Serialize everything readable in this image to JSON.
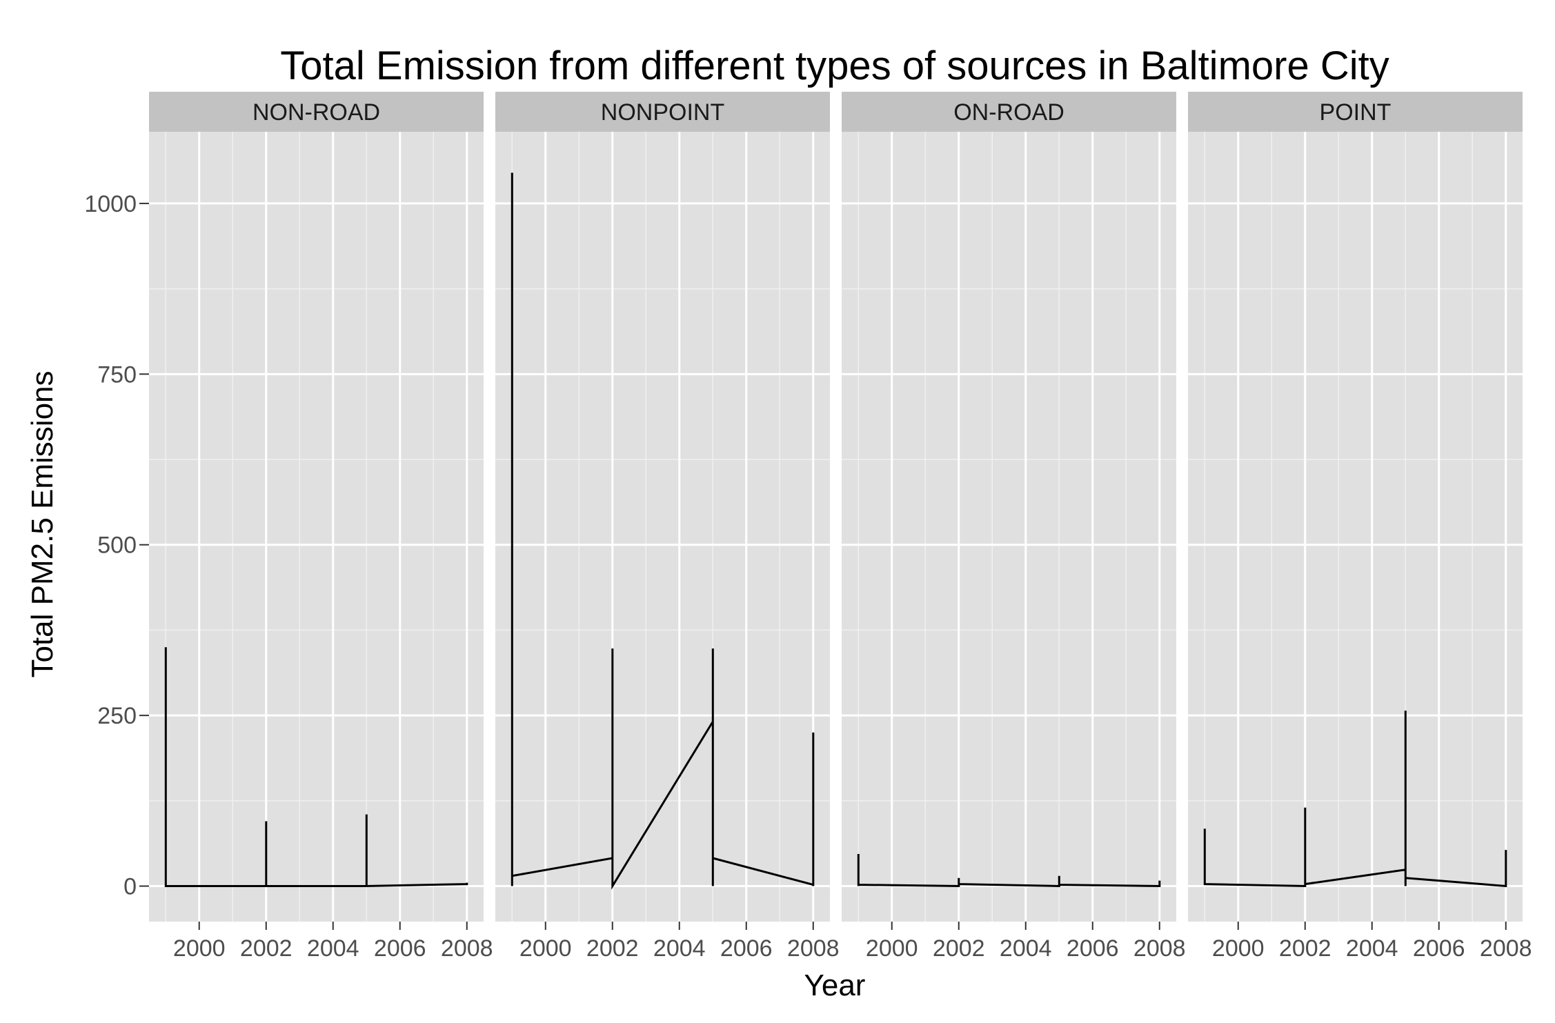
{
  "chart_data": {
    "type": "line",
    "title": "Total Emission from different types of sources in Baltimore City",
    "xlabel": "Year",
    "ylabel": "Total PM2.5 Emissions",
    "xlim": [
      1998.5,
      2008.5
    ],
    "ylim": [
      -52,
      1105
    ],
    "x_ticks": [
      2000,
      2002,
      2004,
      2006,
      2008
    ],
    "y_ticks": [
      0,
      250,
      500,
      750,
      1000
    ],
    "grid": true,
    "panels": [
      {
        "name": "NON-ROAD",
        "points": [
          {
            "x": 1999,
            "y": 350
          },
          {
            "x": 1999,
            "y": 0
          },
          {
            "x": 2002,
            "y": 0
          },
          {
            "x": 2002,
            "y": 95
          },
          {
            "x": 2002,
            "y": 0
          },
          {
            "x": 2005,
            "y": 0
          },
          {
            "x": 2005,
            "y": 105
          },
          {
            "x": 2005,
            "y": 0
          },
          {
            "x": 2008,
            "y": 3
          },
          {
            "x": 2008,
            "y": 5
          }
        ]
      },
      {
        "name": "NONPOINT",
        "points": [
          {
            "x": 1999,
            "y": 0
          },
          {
            "x": 1999,
            "y": 1045
          },
          {
            "x": 1999,
            "y": 15
          },
          {
            "x": 2002,
            "y": 41
          },
          {
            "x": 2002,
            "y": 348
          },
          {
            "x": 2002,
            "y": 0
          },
          {
            "x": 2005,
            "y": 241
          },
          {
            "x": 2005,
            "y": 348
          },
          {
            "x": 2005,
            "y": 0
          },
          {
            "x": 2005,
            "y": 41
          },
          {
            "x": 2008,
            "y": 2
          },
          {
            "x": 2008,
            "y": 225
          },
          {
            "x": 2008,
            "y": 0
          }
        ]
      },
      {
        "name": "ON-ROAD",
        "points": [
          {
            "x": 1999,
            "y": 0
          },
          {
            "x": 1999,
            "y": 47
          },
          {
            "x": 1999,
            "y": 2
          },
          {
            "x": 2002,
            "y": 0
          },
          {
            "x": 2002,
            "y": 12
          },
          {
            "x": 2002,
            "y": 3
          },
          {
            "x": 2005,
            "y": 0
          },
          {
            "x": 2005,
            "y": 15
          },
          {
            "x": 2005,
            "y": 2
          },
          {
            "x": 2008,
            "y": 0
          },
          {
            "x": 2008,
            "y": 8
          },
          {
            "x": 2008,
            "y": 0
          }
        ]
      },
      {
        "name": "POINT",
        "points": [
          {
            "x": 1999,
            "y": 84
          },
          {
            "x": 1999,
            "y": 3
          },
          {
            "x": 2002,
            "y": 0
          },
          {
            "x": 2002,
            "y": 115
          },
          {
            "x": 2002,
            "y": 3
          },
          {
            "x": 2005,
            "y": 24
          },
          {
            "x": 2005,
            "y": 257
          },
          {
            "x": 2005,
            "y": 0
          },
          {
            "x": 2005,
            "y": 12
          },
          {
            "x": 2008,
            "y": 0
          },
          {
            "x": 2008,
            "y": 53
          },
          {
            "x": 2008,
            "y": 0
          }
        ]
      }
    ]
  },
  "colors": {
    "panel_background": "#e0e0e0",
    "strip_background": "#c2c2c2",
    "grid_major": "#ffffff",
    "grid_minor": "#f0f0f0",
    "line": "#000000",
    "tick_label": "#4d4d4d"
  }
}
